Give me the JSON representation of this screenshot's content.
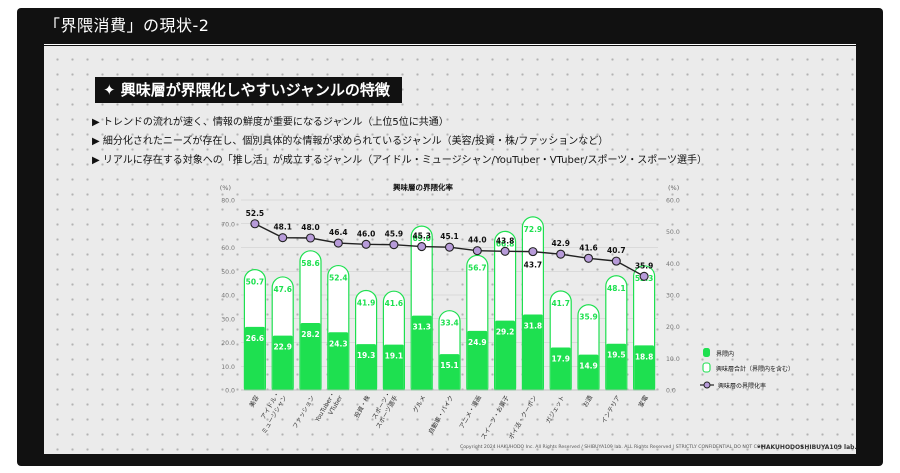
{
  "slide": {
    "title": "「界隈消費」の現状-2",
    "headline": "✦ 興味層が界隈化しやすいジャンルの特徴",
    "bullets": [
      "▶ トレンドの流れが速く、情報の鮮度が重要になるジャンル（上位5位に共通）",
      "▶ 細分化されたニーズが存在し、個別具体的な情報が求められているジャンル（美容/投資・株/ファッションなど）",
      "▶ リアルに存在する対象への「推し活」が成立するジャンル（アイドル・ミュージシャン/YouTuber・VTuber/スポーツ・スポーツ選手）"
    ]
  },
  "footer": {
    "copyright": "Copyright 2024 HAKUHODO Inc. All Rights Reserved / SHIBUYA109 lab. ALL Rights Reserved  |  STRICTLY  CONFIDENTIAL  DO NOT COPY",
    "logo_left": "•HAKUHODO•",
    "logo_right": "SHIBUYA109 lab."
  },
  "colors": {
    "green": "#1ee050",
    "green_outline": "#1ee050",
    "line": "#222222",
    "marker": "#b79bd9"
  },
  "chart_data": {
    "type": "bar",
    "title": "興味層の界隈化率",
    "left_unit": "(%)",
    "right_unit": "(%)",
    "ylim_left": [
      0,
      80
    ],
    "ylim_right": [
      0,
      60
    ],
    "yticks_left": [
      "0.0",
      "10.0",
      "20.0",
      "30.0",
      "40.0",
      "50.0",
      "60.0",
      "70.0",
      "80.0"
    ],
    "yticks_right": [
      "0.0",
      "10.0",
      "20.0",
      "30.0",
      "40.0",
      "50.0",
      "60.0"
    ],
    "categories": [
      [
        "美容"
      ],
      [
        "アイドル・",
        "ミュージシャン"
      ],
      [
        "ファッション"
      ],
      [
        "YouTuber・",
        "VTuber"
      ],
      [
        "投資・株"
      ],
      [
        "スポーツ・",
        "スポーツ選手"
      ],
      [
        "グルメ"
      ],
      [
        "自動車・バイク"
      ],
      [
        "アニメ・漫画"
      ],
      [
        "スイーツ・お菓子"
      ],
      [
        "ポイ活・クーポン"
      ],
      [
        "ガジェット"
      ],
      [
        "お酒"
      ],
      [
        "インテリア"
      ],
      [
        "家電"
      ]
    ],
    "series": [
      {
        "name": "界隈内",
        "values": [
          26.6,
          22.9,
          28.2,
          24.3,
          19.3,
          19.1,
          31.3,
          15.1,
          24.9,
          29.2,
          31.8,
          17.9,
          14.9,
          19.5,
          18.8
        ]
      },
      {
        "name": "興味層合計（界隈内を含む）",
        "values": [
          50.7,
          47.6,
          58.6,
          52.4,
          41.9,
          41.6,
          69.0,
          33.4,
          56.7,
          66.8,
          72.9,
          41.7,
          35.9,
          48.1,
          52.3
        ]
      },
      {
        "name": "興味層の界隈化率",
        "values": [
          52.5,
          48.1,
          48.0,
          46.4,
          46.0,
          45.9,
          45.3,
          45.1,
          44.0,
          43.8,
          43.7,
          42.9,
          41.6,
          40.7,
          35.9
        ]
      }
    ]
  }
}
